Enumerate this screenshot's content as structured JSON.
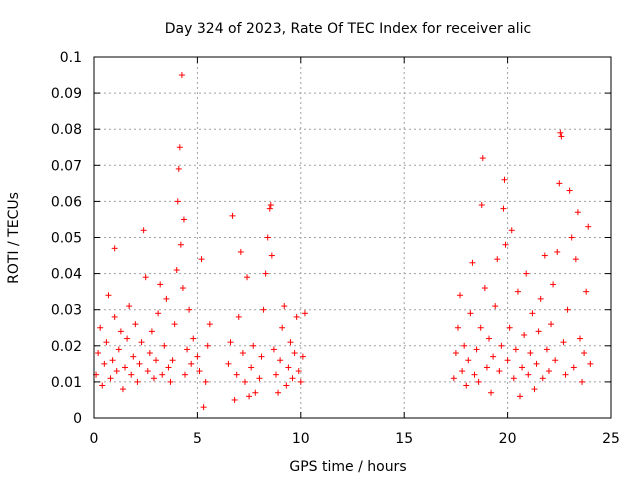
{
  "chart_data": {
    "type": "scatter",
    "title": "Day 324 of 2023, Rate Of TEC Index for receiver alic",
    "xlabel": "GPS time / hours",
    "ylabel": "ROTI / TECUs",
    "xlim": [
      0,
      25
    ],
    "ylim": [
      0,
      0.1
    ],
    "x_ticks": [
      "0",
      "5",
      "10",
      "15",
      "20",
      "25"
    ],
    "y_ticks": [
      "0",
      "0.01",
      "0.02",
      "0.03",
      "0.04",
      "0.05",
      "0.06",
      "0.07",
      "0.08",
      "0.09",
      "0.1"
    ],
    "x_tick_values": [
      0,
      5,
      10,
      15,
      20,
      25
    ],
    "y_tick_values": [
      0,
      0.01,
      0.02,
      0.03,
      0.04,
      0.05,
      0.06,
      0.07,
      0.08,
      0.09,
      0.1
    ],
    "grid": true,
    "marker": "+",
    "color": "#ff0000",
    "series": [
      {
        "points": [
          [
            0.1,
            0.012
          ],
          [
            0.2,
            0.018
          ],
          [
            0.3,
            0.025
          ],
          [
            0.4,
            0.009
          ],
          [
            0.5,
            0.015
          ],
          [
            0.6,
            0.021
          ],
          [
            0.7,
            0.034
          ],
          [
            0.8,
            0.011
          ],
          [
            0.9,
            0.016
          ],
          [
            1.0,
            0.028
          ],
          [
            1.0,
            0.047
          ],
          [
            1.1,
            0.013
          ],
          [
            1.2,
            0.019
          ],
          [
            1.3,
            0.024
          ],
          [
            1.4,
            0.008
          ],
          [
            1.5,
            0.014
          ],
          [
            1.6,
            0.022
          ],
          [
            1.7,
            0.031
          ],
          [
            1.8,
            0.012
          ],
          [
            1.9,
            0.017
          ],
          [
            2.0,
            0.026
          ],
          [
            2.1,
            0.01
          ],
          [
            2.2,
            0.015
          ],
          [
            2.3,
            0.021
          ],
          [
            2.4,
            0.052
          ],
          [
            2.5,
            0.039
          ],
          [
            2.6,
            0.013
          ],
          [
            2.7,
            0.018
          ],
          [
            2.8,
            0.024
          ],
          [
            2.9,
            0.011
          ],
          [
            3.0,
            0.016
          ],
          [
            3.1,
            0.029
          ],
          [
            3.2,
            0.037
          ],
          [
            3.3,
            0.012
          ],
          [
            3.4,
            0.02
          ],
          [
            3.5,
            0.033
          ],
          [
            3.6,
            0.014
          ],
          [
            3.7,
            0.01
          ],
          [
            3.8,
            0.016
          ],
          [
            3.9,
            0.026
          ],
          [
            4.0,
            0.041
          ],
          [
            4.05,
            0.06
          ],
          [
            4.1,
            0.069
          ],
          [
            4.15,
            0.075
          ],
          [
            4.2,
            0.048
          ],
          [
            4.25,
            0.095
          ],
          [
            4.3,
            0.036
          ],
          [
            4.35,
            0.055
          ],
          [
            4.4,
            0.012
          ],
          [
            4.5,
            0.019
          ],
          [
            4.6,
            0.03
          ],
          [
            4.7,
            0.015
          ],
          [
            4.8,
            0.022
          ],
          [
            5.0,
            0.017
          ],
          [
            5.1,
            0.013
          ],
          [
            5.2,
            0.044
          ],
          [
            5.3,
            0.003
          ],
          [
            5.4,
            0.01
          ],
          [
            5.5,
            0.02
          ],
          [
            5.6,
            0.026
          ],
          [
            6.5,
            0.015
          ],
          [
            6.6,
            0.021
          ],
          [
            6.7,
            0.056
          ],
          [
            6.8,
            0.005
          ],
          [
            6.9,
            0.012
          ],
          [
            7.0,
            0.028
          ],
          [
            7.1,
            0.046
          ],
          [
            7.2,
            0.018
          ],
          [
            7.3,
            0.01
          ],
          [
            7.4,
            0.039
          ],
          [
            7.5,
            0.006
          ],
          [
            7.6,
            0.014
          ],
          [
            7.7,
            0.02
          ],
          [
            7.8,
            0.007
          ],
          [
            8.0,
            0.011
          ],
          [
            8.1,
            0.017
          ],
          [
            8.2,
            0.03
          ],
          [
            8.3,
            0.04
          ],
          [
            8.4,
            0.05
          ],
          [
            8.5,
            0.058
          ],
          [
            8.55,
            0.059
          ],
          [
            8.6,
            0.045
          ],
          [
            8.7,
            0.019
          ],
          [
            8.8,
            0.012
          ],
          [
            8.9,
            0.007
          ],
          [
            9.0,
            0.016
          ],
          [
            9.1,
            0.025
          ],
          [
            9.2,
            0.031
          ],
          [
            9.3,
            0.009
          ],
          [
            9.4,
            0.014
          ],
          [
            9.5,
            0.021
          ],
          [
            9.6,
            0.011
          ],
          [
            9.7,
            0.018
          ],
          [
            9.8,
            0.028
          ],
          [
            9.9,
            0.013
          ],
          [
            10.0,
            0.01
          ],
          [
            10.1,
            0.017
          ],
          [
            10.2,
            0.029
          ],
          [
            17.4,
            0.011
          ],
          [
            17.5,
            0.018
          ],
          [
            17.6,
            0.025
          ],
          [
            17.7,
            0.034
          ],
          [
            17.8,
            0.013
          ],
          [
            17.9,
            0.02
          ],
          [
            18.0,
            0.009
          ],
          [
            18.1,
            0.016
          ],
          [
            18.2,
            0.029
          ],
          [
            18.3,
            0.043
          ],
          [
            18.4,
            0.012
          ],
          [
            18.5,
            0.019
          ],
          [
            18.6,
            0.01
          ],
          [
            18.7,
            0.025
          ],
          [
            18.75,
            0.059
          ],
          [
            18.8,
            0.072
          ],
          [
            18.9,
            0.036
          ],
          [
            19.0,
            0.014
          ],
          [
            19.1,
            0.022
          ],
          [
            19.2,
            0.007
          ],
          [
            19.3,
            0.017
          ],
          [
            19.4,
            0.031
          ],
          [
            19.5,
            0.044
          ],
          [
            19.6,
            0.013
          ],
          [
            19.7,
            0.02
          ],
          [
            19.8,
            0.058
          ],
          [
            19.85,
            0.066
          ],
          [
            19.9,
            0.048
          ],
          [
            20.0,
            0.016
          ],
          [
            20.1,
            0.025
          ],
          [
            20.2,
            0.052
          ],
          [
            20.3,
            0.011
          ],
          [
            20.4,
            0.019
          ],
          [
            20.5,
            0.035
          ],
          [
            20.6,
            0.006
          ],
          [
            20.7,
            0.014
          ],
          [
            20.8,
            0.023
          ],
          [
            20.9,
            0.04
          ],
          [
            21.0,
            0.012
          ],
          [
            21.1,
            0.018
          ],
          [
            21.2,
            0.029
          ],
          [
            21.3,
            0.008
          ],
          [
            21.4,
            0.015
          ],
          [
            21.5,
            0.024
          ],
          [
            21.6,
            0.033
          ],
          [
            21.7,
            0.011
          ],
          [
            21.8,
            0.045
          ],
          [
            21.9,
            0.019
          ],
          [
            22.0,
            0.013
          ],
          [
            22.1,
            0.026
          ],
          [
            22.2,
            0.037
          ],
          [
            22.3,
            0.016
          ],
          [
            22.4,
            0.046
          ],
          [
            22.5,
            0.065
          ],
          [
            22.55,
            0.079
          ],
          [
            22.6,
            0.078
          ],
          [
            22.7,
            0.021
          ],
          [
            22.8,
            0.012
          ],
          [
            22.9,
            0.03
          ],
          [
            23.0,
            0.063
          ],
          [
            23.1,
            0.05
          ],
          [
            23.2,
            0.014
          ],
          [
            23.3,
            0.044
          ],
          [
            23.4,
            0.057
          ],
          [
            23.5,
            0.022
          ],
          [
            23.6,
            0.01
          ],
          [
            23.7,
            0.018
          ],
          [
            23.8,
            0.035
          ],
          [
            23.9,
            0.053
          ],
          [
            24.0,
            0.015
          ]
        ]
      }
    ]
  }
}
